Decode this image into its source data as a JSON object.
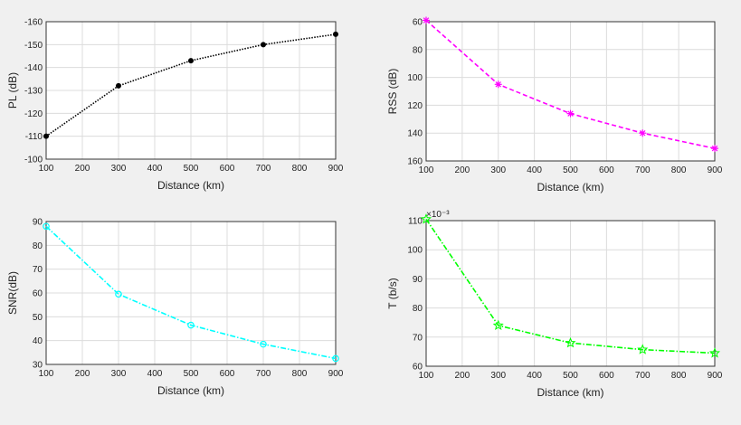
{
  "chart_data": [
    {
      "type": "line",
      "x": [
        100,
        300,
        500,
        700,
        900
      ],
      "series": [
        {
          "values": [
            -110,
            -132,
            -143,
            -150,
            -154.5
          ]
        }
      ],
      "xlabel": "Distance (km)",
      "ylabel": "PL (dB)",
      "xlim": [
        100,
        900
      ],
      "ylim": [
        -160,
        -100
      ],
      "y_reversed": true,
      "xticks": [
        100,
        200,
        300,
        400,
        500,
        600,
        700,
        800,
        900
      ],
      "yticks": [
        -160,
        -150,
        -140,
        -130,
        -120,
        -110,
        -100
      ],
      "y_exponent": "",
      "grid": true,
      "color": "#000000",
      "marker": "dot",
      "line_style": "dotted"
    },
    {
      "type": "line",
      "x": [
        100,
        300,
        500,
        700,
        900
      ],
      "series": [
        {
          "values": [
            59,
            105,
            126,
            140,
            151
          ]
        }
      ],
      "xlabel": "Distance (km)",
      "ylabel": "RSS (dB)",
      "xlim": [
        100,
        900
      ],
      "ylim": [
        60,
        160
      ],
      "y_reversed": true,
      "xticks": [
        100,
        200,
        300,
        400,
        500,
        600,
        700,
        800,
        900
      ],
      "yticks": [
        60,
        80,
        100,
        120,
        140,
        160
      ],
      "y_exponent": "",
      "grid": true,
      "color": "#ff00ff",
      "marker": "asterisk",
      "line_style": "dashed"
    },
    {
      "type": "line",
      "x": [
        100,
        300,
        500,
        700,
        900
      ],
      "series": [
        {
          "values": [
            88,
            59.5,
            46.5,
            38.5,
            32.5
          ]
        }
      ],
      "xlabel": "Distance (km)",
      "ylabel": "SNR(dB)",
      "xlim": [
        100,
        900
      ],
      "ylim": [
        30,
        90
      ],
      "y_reversed": false,
      "xticks": [
        100,
        200,
        300,
        400,
        500,
        600,
        700,
        800,
        900
      ],
      "yticks": [
        30,
        40,
        50,
        60,
        70,
        80,
        90
      ],
      "y_exponent": "",
      "grid": true,
      "color": "#00ffff",
      "marker": "circle",
      "line_style": "dashdot"
    },
    {
      "type": "line",
      "x": [
        100,
        300,
        500,
        700,
        900
      ],
      "series": [
        {
          "values": [
            0.1105,
            0.074,
            0.068,
            0.0657,
            0.0645
          ]
        }
      ],
      "xlabel": "Distance (km)",
      "ylabel": "T (b/s)",
      "xlim": [
        100,
        900
      ],
      "ylim": [
        0.06,
        0.11
      ],
      "y_reversed": false,
      "xticks": [
        100,
        200,
        300,
        400,
        500,
        600,
        700,
        800,
        900
      ],
      "yticks": [
        0.06,
        0.07,
        0.08,
        0.09,
        0.1,
        0.11
      ],
      "ytick_labels": [
        "60",
        "70",
        "80",
        "90",
        "100",
        "110"
      ],
      "y_exponent": "×10⁻³",
      "grid": true,
      "color": "#00ff00",
      "marker": "star",
      "line_style": "dashdot"
    }
  ]
}
